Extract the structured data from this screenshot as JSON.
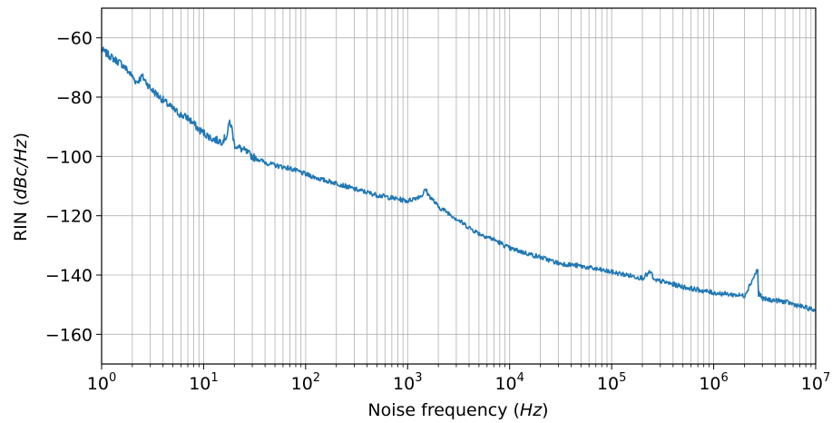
{
  "chart_data": {
    "type": "line",
    "xlabel": "Noise frequency (Hz)",
    "xlabel_parts": {
      "text": "Noise frequency ",
      "unit": "Hz"
    },
    "ylabel": "RIN (dBc/Hz)",
    "ylabel_parts": {
      "text": "RIN ",
      "unit": "dBc/Hz"
    },
    "x_scale": "log",
    "xlim": [
      1,
      10000000
    ],
    "ylim": [
      -170,
      -50
    ],
    "grid": true,
    "line_color": "#1f77b4",
    "x_ticks": [
      {
        "base": "10",
        "exp": "0"
      },
      {
        "base": "10",
        "exp": "1"
      },
      {
        "base": "10",
        "exp": "2"
      },
      {
        "base": "10",
        "exp": "3"
      },
      {
        "base": "10",
        "exp": "4"
      },
      {
        "base": "10",
        "exp": "5"
      },
      {
        "base": "10",
        "exp": "6"
      },
      {
        "base": "10",
        "exp": "7"
      }
    ],
    "y_ticks": [
      "−60",
      "−80",
      "−100",
      "−120",
      "−140",
      "−160"
    ],
    "series": [
      {
        "x": [
          1,
          1.3,
          1.6,
          2.0,
          2.2,
          2.5,
          3.0,
          4.0,
          5.0,
          6.0,
          7.0,
          8.0,
          9.0,
          10,
          12,
          15,
          17,
          18,
          19,
          20,
          22,
          25,
          30,
          40,
          50,
          70,
          100,
          150,
          200,
          300,
          500,
          700,
          1000,
          1200,
          1400,
          1500,
          1600,
          1800,
          2000,
          2500,
          3000,
          4000,
          5000,
          7000,
          10000,
          20000,
          30000,
          50000,
          100000,
          200000,
          240000,
          250000,
          260000,
          300000,
          500000,
          1000000,
          2000000,
          2700000,
          2750000,
          2800000,
          2900000,
          3000000,
          5000000,
          10000000
        ],
        "y": [
          -64,
          -67,
          -69,
          -73,
          -75,
          -73,
          -77,
          -81,
          -84,
          -86,
          -87,
          -89,
          -91,
          -92,
          -94,
          -95,
          -93,
          -88,
          -91,
          -96,
          -97,
          -98,
          -100,
          -102,
          -103,
          -104,
          -106,
          -108,
          -109,
          -111,
          -113,
          -114,
          -115,
          -114,
          -113,
          -111,
          -113,
          -115,
          -117,
          -119,
          -121,
          -124,
          -126,
          -128,
          -131,
          -134,
          -136,
          -137,
          -139,
          -141,
          -139,
          -140,
          -142,
          -142,
          -144,
          -146,
          -147,
          -138,
          -147,
          -146,
          -147,
          -148,
          -149,
          -152
        ]
      }
    ]
  }
}
